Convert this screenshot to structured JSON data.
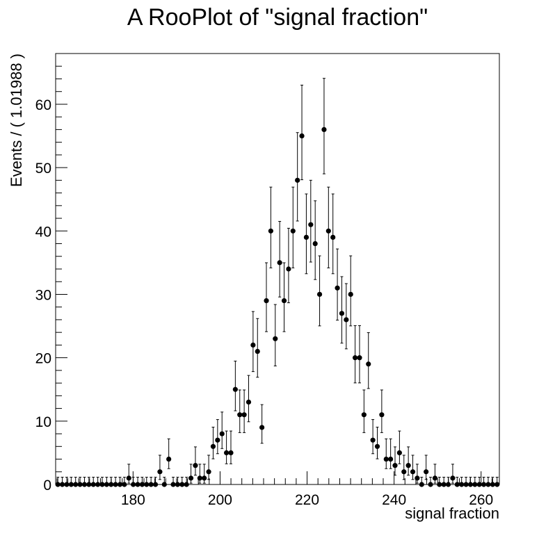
{
  "chart_data": {
    "type": "scatter",
    "title": "A RooPlot of \"signal fraction\"",
    "xlabel": "signal fraction",
    "ylabel": "Events / ( 1.01988 )",
    "xlim": [
      162.2,
      264.2
    ],
    "ylim": [
      0,
      68
    ],
    "bin_width": 1.01988,
    "x_ticks": [
      180,
      200,
      220,
      240,
      260
    ],
    "y_ticks": [
      0,
      10,
      20,
      30,
      40,
      50,
      60
    ],
    "x_start": 162.71,
    "error_bars": "poisson_approx",
    "grid": false,
    "legend": "none",
    "marker_color": "#000000",
    "counts": [
      0,
      0,
      0,
      0,
      0,
      0,
      0,
      0,
      0,
      0,
      0,
      0,
      0,
      0,
      0,
      0,
      1,
      0,
      0,
      0,
      0,
      0,
      0,
      2,
      0,
      4,
      0,
      0,
      0,
      0,
      1,
      3,
      1,
      1,
      2,
      6,
      7,
      8,
      5,
      5,
      15,
      11,
      11,
      13,
      22,
      21,
      9,
      29,
      40,
      23,
      35,
      29,
      34,
      40,
      48,
      55,
      39,
      41,
      38,
      30,
      56,
      40,
      39,
      31,
      27,
      26,
      30,
      20,
      20,
      11,
      19,
      7,
      6,
      11,
      4,
      4,
      3,
      5,
      2,
      3,
      2,
      1,
      0,
      2,
      0,
      1,
      0,
      0,
      0,
      1,
      0,
      0,
      0,
      0,
      0,
      0,
      0,
      0,
      0,
      0
    ]
  }
}
